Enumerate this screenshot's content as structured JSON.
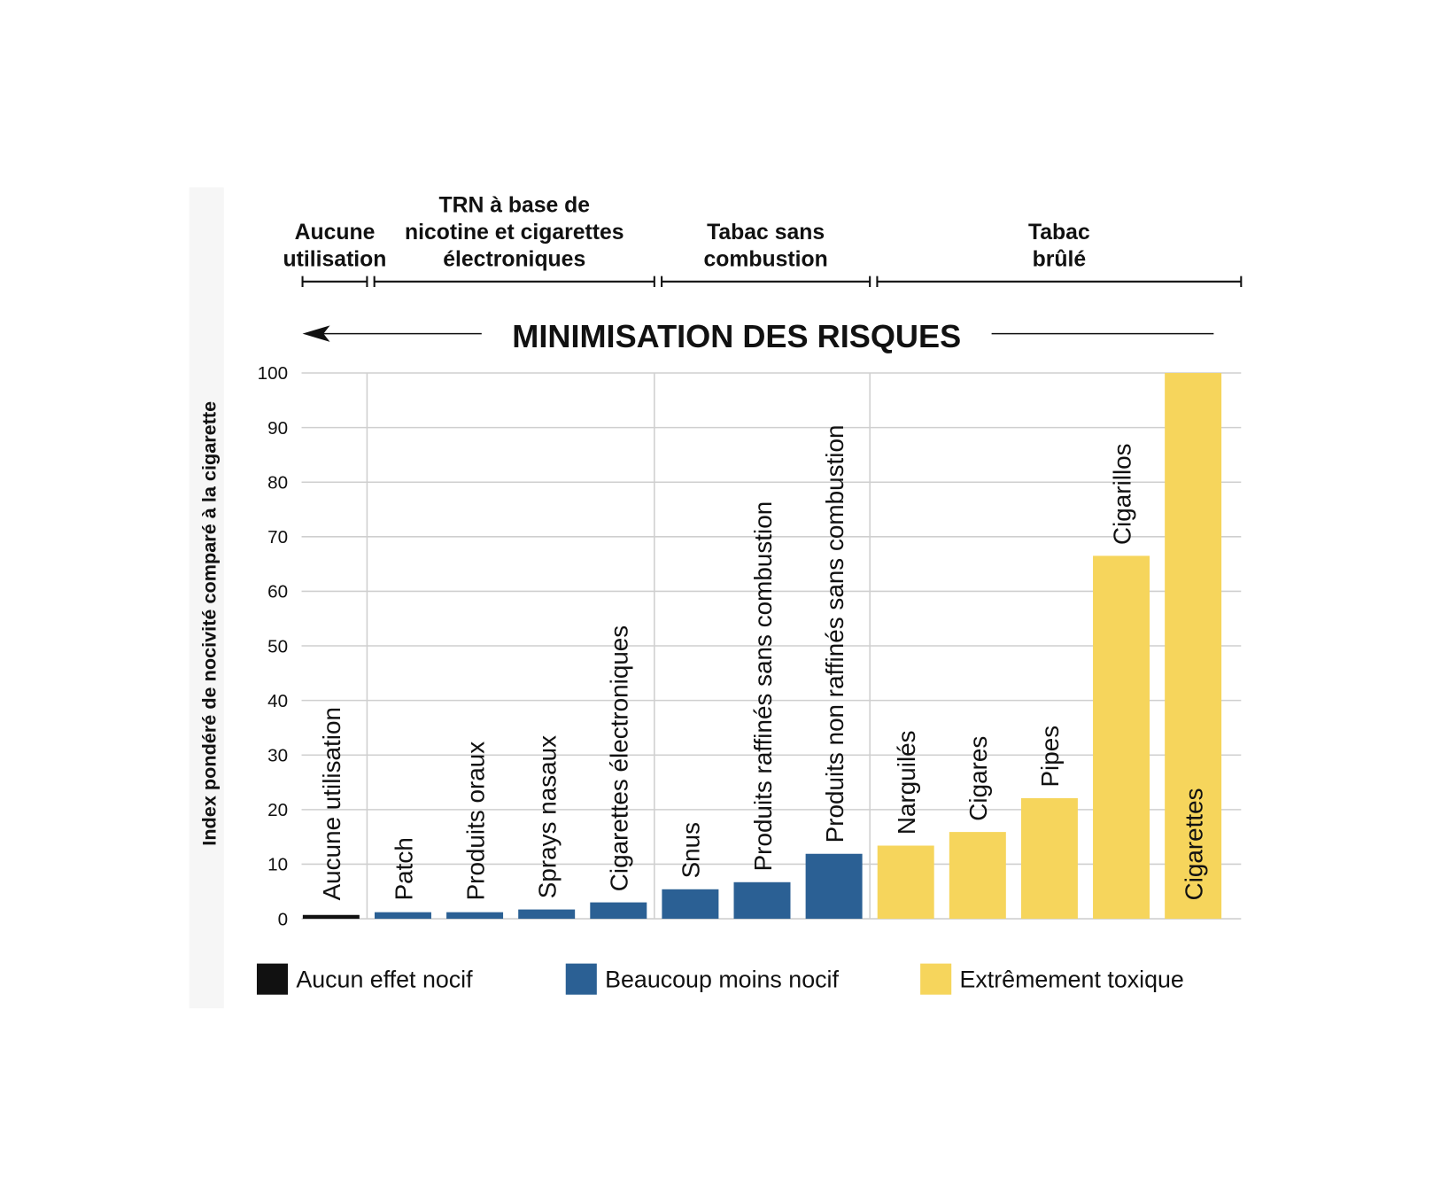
{
  "chart_data": {
    "type": "bar",
    "title": "MINIMISATION DES RISQUES",
    "y_label": "Index pondéré de nocivité comparé à la cigarette",
    "groups": [
      {
        "lines": [
          "Aucune",
          "utilisation"
        ]
      },
      {
        "lines": [
          "TRN à base de",
          "nicotine et cigarettes",
          "électroniques"
        ]
      },
      {
        "lines": [
          "Tabac sans",
          "combustion"
        ]
      },
      {
        "lines": [
          "Tabac",
          "brûlé"
        ]
      }
    ],
    "categories": [
      "Aucune utilisation",
      "Patch",
      "Produits oraux",
      "Sprays nasaux",
      "Cigarettes électroniques",
      "Snus",
      "Produits raffinés sans combustion",
      "Produits non raffinés sans combustion",
      "Narguilés",
      "Cigares",
      "Pipes",
      "Cigarillos",
      "Cigarettes"
    ],
    "series": [
      {
        "name": "Aucun effet nocif",
        "color": "#111111",
        "values": [
          0.7,
          null,
          null,
          null,
          null,
          null,
          null,
          null,
          null,
          null,
          null,
          null,
          null
        ]
      },
      {
        "name": "Beaucoup moins nocif",
        "color": "#2b6094",
        "values": [
          null,
          1.2,
          1.2,
          1.7,
          3,
          5.4,
          6.7,
          11.9,
          null,
          null,
          null,
          null,
          null
        ]
      },
      {
        "name": "Extrêmement toxique",
        "color": "#f6d55c",
        "values": [
          null,
          null,
          null,
          null,
          null,
          null,
          null,
          null,
          13.4,
          15.9,
          22.1,
          66.5,
          100
        ]
      }
    ],
    "ylim": [
      0,
      100
    ],
    "yticks": [
      0,
      10,
      20,
      30,
      40,
      50,
      60,
      70,
      80,
      90,
      100
    ],
    "grid": true
  }
}
